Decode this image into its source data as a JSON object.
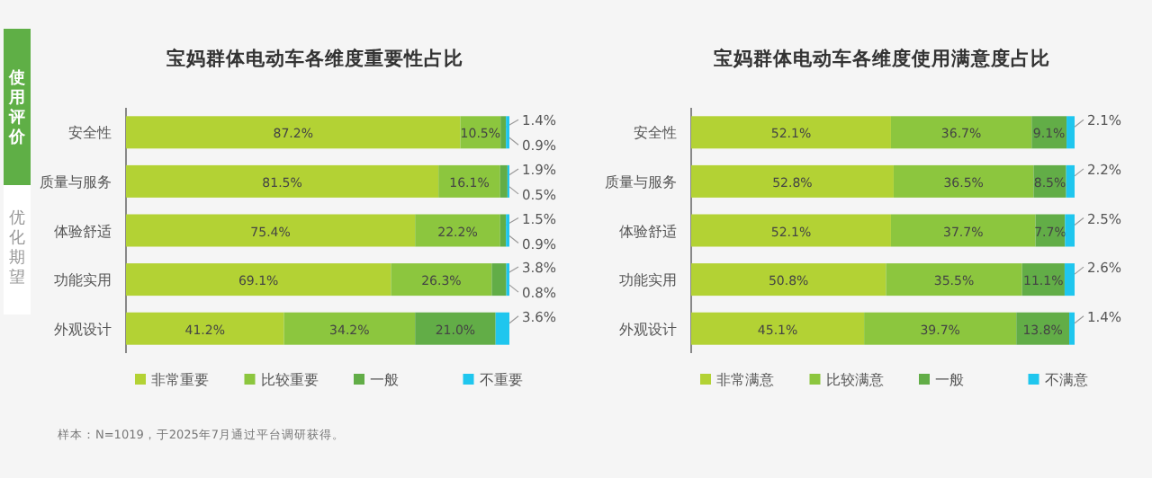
{
  "chart_data": [
    {
      "type": "bar",
      "orientation": "horizontal",
      "stacked": true,
      "title": "宝妈群体电动车各维度重要性占比",
      "categories": [
        "安全性",
        "质量与服务",
        "体验舒适",
        "功能实用",
        "外观设计"
      ],
      "xlim": [
        0,
        100
      ],
      "tick_labels": "y",
      "legend": "bottom",
      "series": [
        {
          "name": "非常重要",
          "color": "#b3d234",
          "values": [
            87.2,
            81.5,
            75.4,
            69.1,
            41.2
          ],
          "value_labels": [
            "87.2%",
            "81.5%",
            "75.4%",
            "69.1%",
            "41.2%"
          ]
        },
        {
          "name": "比较重要",
          "color": "#8cc63e",
          "values": [
            10.5,
            16.1,
            22.2,
            26.3,
            34.2
          ],
          "value_labels": [
            "10.5%",
            "16.1%",
            "22.2%",
            "26.3%",
            "34.2%"
          ]
        },
        {
          "name": "一般",
          "color": "#62ad47",
          "values": [
            1.4,
            1.9,
            1.5,
            3.8,
            21.0
          ],
          "value_labels": [
            "1.4%",
            "1.9%",
            "1.5%",
            "3.8%",
            "21.0%"
          ]
        },
        {
          "name": "不重要",
          "color": "#1fc6ee",
          "values": [
            0.9,
            0.5,
            0.9,
            0.8,
            3.6
          ],
          "value_labels": [
            "0.9%",
            "0.5%",
            "0.9%",
            "0.8%",
            "3.6%"
          ]
        }
      ],
      "annotations": [
        "使用评价",
        "优化期望",
        "样本：N=1019，于2025年7月通过平台调研获得。"
      ]
    },
    {
      "type": "bar",
      "orientation": "horizontal",
      "stacked": true,
      "title": "宝妈群体电动车各维度使用满意度占比",
      "categories": [
        "安全性",
        "质量与服务",
        "体验舒适",
        "功能实用",
        "外观设计"
      ],
      "xlim": [
        0,
        100
      ],
      "tick_labels": "y",
      "legend": "bottom",
      "series": [
        {
          "name": "非常满意",
          "color": "#b3d234",
          "values": [
            52.1,
            52.8,
            52.1,
            50.8,
            45.1
          ],
          "value_labels": [
            "52.1%",
            "52.8%",
            "52.1%",
            "50.8%",
            "45.1%"
          ]
        },
        {
          "name": "比较满意",
          "color": "#8cc63e",
          "values": [
            36.7,
            36.5,
            37.7,
            35.5,
            39.7
          ],
          "value_labels": [
            "36.7%",
            "36.5%",
            "37.7%",
            "35.5%",
            "39.7%"
          ]
        },
        {
          "name": "一般",
          "color": "#62ad47",
          "values": [
            9.1,
            8.5,
            7.7,
            11.1,
            13.8
          ],
          "value_labels": [
            "9.1%",
            "8.5%",
            "7.7%",
            "11.1%",
            "13.8%"
          ]
        },
        {
          "name": "不满意",
          "color": "#1fc6ee",
          "values": [
            2.1,
            2.2,
            2.5,
            2.6,
            1.4
          ],
          "value_labels": [
            "2.1%",
            "2.2%",
            "2.5%",
            "2.6%",
            "1.4%"
          ]
        }
      ]
    }
  ]
}
